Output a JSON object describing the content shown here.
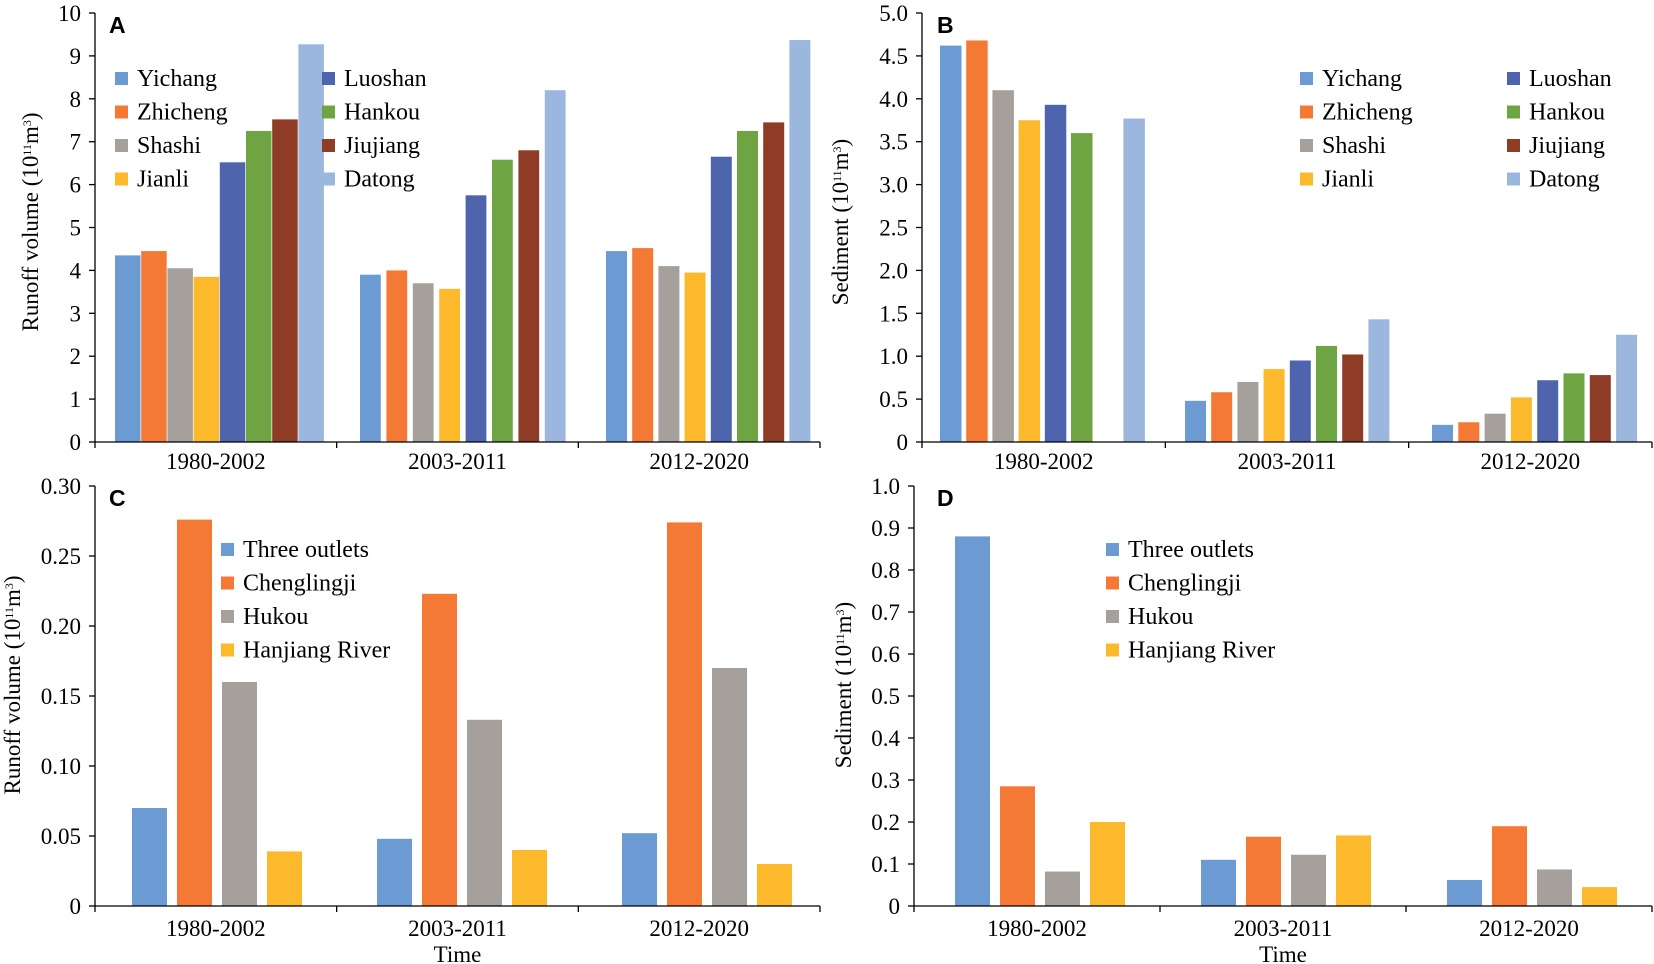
{
  "colors": {
    "Yichang": "#6b9bd2",
    "Zhicheng": "#f47935",
    "Shashi": "#a6a09c",
    "Jianli": "#fdb92c",
    "Luoshan": "#4e65ad",
    "Hankou": "#6fa443",
    "Jiujiang": "#8e3c26",
    "Datong": "#9cb7de",
    "Three outlets": "#6b9bd2",
    "Chenglingji": "#f47935",
    "Hukou": "#a6a09c",
    "Hanjiang River": "#fdb92c"
  },
  "chart_data": [
    {
      "panel": "A",
      "type": "bar",
      "ylabel_main": "Runoff volume (10",
      "ylabel_sup1": "11",
      "ylabel_mid": "m",
      "ylabel_sup2": "3",
      "ylabel_end": ")",
      "xlabel": "",
      "ylim": [
        0,
        10
      ],
      "yticks": [
        "0",
        "1",
        "2",
        "3",
        "4",
        "5",
        "6",
        "7",
        "8",
        "9",
        "10"
      ],
      "categories": [
        "1980-2002",
        "2003-2011",
        "2012-2020"
      ],
      "series": [
        {
          "name": "Yichang",
          "values": [
            4.35,
            3.9,
            4.45
          ]
        },
        {
          "name": "Zhicheng",
          "values": [
            4.45,
            4.0,
            4.52
          ]
        },
        {
          "name": "Shashi",
          "values": [
            4.05,
            3.7,
            4.1
          ]
        },
        {
          "name": "Jianli",
          "values": [
            3.85,
            3.57,
            3.95
          ]
        },
        {
          "name": "Luoshan",
          "values": [
            6.52,
            5.75,
            6.65
          ]
        },
        {
          "name": "Hankou",
          "values": [
            7.25,
            6.58,
            7.25
          ]
        },
        {
          "name": "Jiujiang",
          "values": [
            7.52,
            6.8,
            7.45
          ]
        },
        {
          "name": "Datong",
          "values": [
            9.27,
            8.2,
            9.37
          ]
        }
      ],
      "legend": [
        "Yichang",
        "Zhicheng",
        "Shashi",
        "Jianli",
        "Luoshan",
        "Hankou",
        "Jiujiang",
        "Datong"
      ]
    },
    {
      "panel": "B",
      "type": "bar",
      "ylabel_main": "Sediment (10",
      "ylabel_sup1": "11",
      "ylabel_mid": "m",
      "ylabel_sup2": "3",
      "ylabel_end": ")",
      "xlabel": "",
      "ylim": [
        0,
        5
      ],
      "yticks": [
        "0",
        "0.5",
        "1.0",
        "1.5",
        "2.0",
        "2.5",
        "3.0",
        "3.5",
        "4.0",
        "4.5",
        "5.0"
      ],
      "categories": [
        "1980-2002",
        "2003-2011",
        "2012-2020"
      ],
      "series": [
        {
          "name": "Yichang",
          "values": [
            4.62,
            0.48,
            0.2
          ]
        },
        {
          "name": "Zhicheng",
          "values": [
            4.68,
            0.58,
            0.23
          ]
        },
        {
          "name": "Shashi",
          "values": [
            4.1,
            0.7,
            0.33
          ]
        },
        {
          "name": "Jianli",
          "values": [
            3.75,
            0.85,
            0.52
          ]
        },
        {
          "name": "Luoshan",
          "values": [
            3.93,
            0.95,
            0.72
          ]
        },
        {
          "name": "Hankou",
          "values": [
            3.6,
            1.12,
            0.8
          ]
        },
        {
          "name": "Jiujiang",
          "values": [
            null,
            1.02,
            0.78
          ]
        },
        {
          "name": "Datong",
          "values": [
            3.77,
            1.43,
            1.25
          ]
        }
      ],
      "legend": [
        "Yichang",
        "Zhicheng",
        "Shashi",
        "Jianli",
        "Luoshan",
        "Hankou",
        "Jiujiang",
        "Datong"
      ]
    },
    {
      "panel": "C",
      "type": "bar",
      "ylabel_main": "Runoff volume (10",
      "ylabel_sup1": "11",
      "ylabel_mid": "m",
      "ylabel_sup2": "3",
      "ylabel_end": ")",
      "xlabel": "Time",
      "ylim": [
        0,
        0.3
      ],
      "yticks": [
        "0",
        "0.05",
        "0.10",
        "0.15",
        "0.20",
        "0.25",
        "0.30"
      ],
      "categories": [
        "1980-2002",
        "2003-2011",
        "2012-2020"
      ],
      "series": [
        {
          "name": "Three outlets",
          "values": [
            0.07,
            0.048,
            0.052
          ]
        },
        {
          "name": "Chenglingji",
          "values": [
            0.276,
            0.223,
            0.274
          ]
        },
        {
          "name": "Hukou",
          "values": [
            0.16,
            0.133,
            0.17
          ]
        },
        {
          "name": "Hanjiang River",
          "values": [
            0.039,
            0.04,
            0.03
          ]
        }
      ],
      "legend": [
        "Three outlets",
        "Chenglingji",
        "Hukou",
        "Hanjiang River"
      ]
    },
    {
      "panel": "D",
      "type": "bar",
      "ylabel_main": "Sediment (10",
      "ylabel_sup1": "11",
      "ylabel_mid": "m",
      "ylabel_sup2": "3",
      "ylabel_end": ")",
      "xlabel": "Time",
      "ylim": [
        0,
        1.0
      ],
      "yticks": [
        "0",
        "0.1",
        "0.2",
        "0.3",
        "0.4",
        "0.5",
        "0.6",
        "0.7",
        "0.8",
        "0.9",
        "1.0"
      ],
      "categories": [
        "1980-2002",
        "2003-2011",
        "2012-2020"
      ],
      "series": [
        {
          "name": "Three outlets",
          "values": [
            0.88,
            0.11,
            0.062
          ]
        },
        {
          "name": "Chenglingji",
          "values": [
            0.285,
            0.165,
            0.19
          ]
        },
        {
          "name": "Hukou",
          "values": [
            0.082,
            0.122,
            0.087
          ]
        },
        {
          "name": "Hanjiang River",
          "values": [
            0.2,
            0.168,
            0.045
          ]
        }
      ],
      "legend": [
        "Three outlets",
        "Chenglingji",
        "Hukou",
        "Hanjiang River"
      ]
    }
  ]
}
